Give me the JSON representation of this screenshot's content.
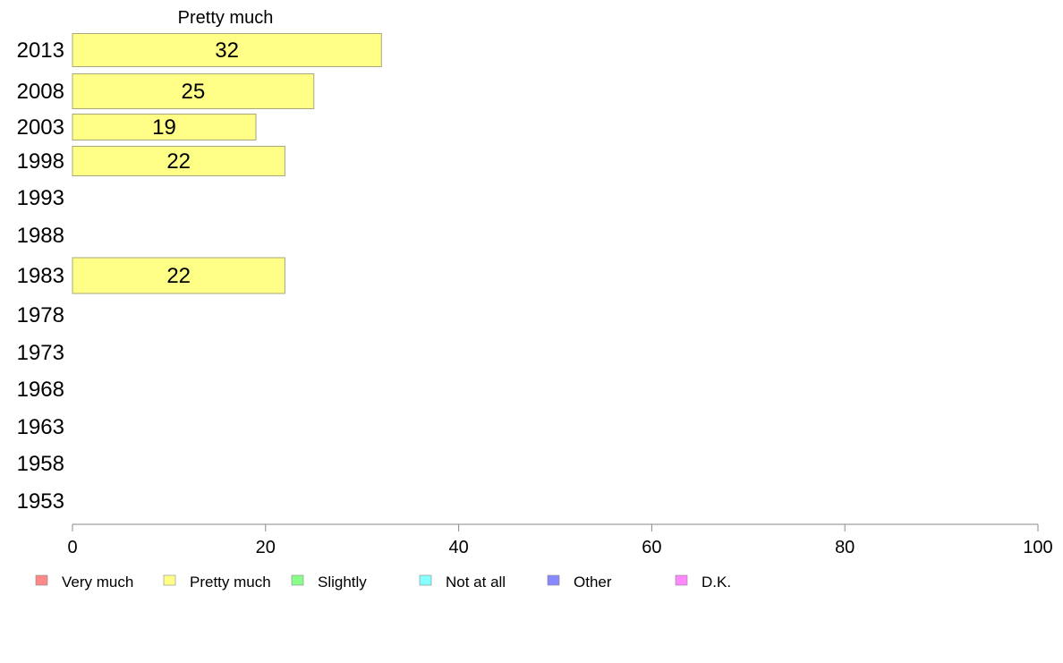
{
  "chart_data": {
    "type": "bar",
    "orientation": "horizontal",
    "title": "Pretty much",
    "xlabel": "",
    "ylabel": "",
    "xlim": [
      0,
      100
    ],
    "x_ticks": [
      0,
      20,
      40,
      60,
      80,
      100
    ],
    "categories": [
      "2013",
      "2008",
      "2003",
      "1998",
      "1993",
      "1988",
      "1983",
      "1978",
      "1973",
      "1968",
      "1963",
      "1958",
      "1953"
    ],
    "series": [
      {
        "name": "Pretty much",
        "values": [
          32,
          25,
          19,
          22,
          null,
          null,
          22,
          null,
          null,
          null,
          null,
          null,
          null
        ],
        "color": "#FFFF88"
      }
    ],
    "grid": false,
    "legend_position": "bottom",
    "legend": [
      {
        "label": "Very much",
        "color": "#FF8888"
      },
      {
        "label": "Pretty much",
        "color": "#FFFF88"
      },
      {
        "label": "Slightly",
        "color": "#88FF88"
      },
      {
        "label": "Not at all",
        "color": "#88FFFF"
      },
      {
        "label": "Other",
        "color": "#8888FF"
      },
      {
        "label": "D.K.",
        "color": "#FF88FF"
      }
    ]
  }
}
